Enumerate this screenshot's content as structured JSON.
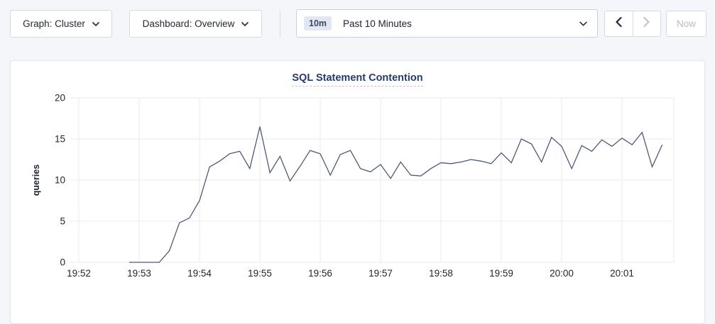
{
  "toolbar": {
    "graph_dropdown": {
      "label": "Graph: Cluster"
    },
    "dashboard_dropdown": {
      "label": "Dashboard: Overview"
    },
    "time_window": {
      "badge": "10m",
      "label": "Past 10 Minutes"
    },
    "prev_button": {
      "enabled": true
    },
    "next_button": {
      "enabled": false
    },
    "now_button": {
      "label": "Now"
    }
  },
  "colors": {
    "accent_navy": "#263a6e",
    "line": "#4c5a77",
    "grid": "#e9ebee",
    "disabled_text": "#b6bcc9"
  },
  "chart_data": {
    "type": "line",
    "title": "SQL Statement Contention",
    "xlabel": "",
    "ylabel": "queries",
    "ylim": [
      0,
      20
    ],
    "y_ticks": [
      0,
      5,
      10,
      15,
      20
    ],
    "x_ticks": [
      "19:52",
      "19:53",
      "19:54",
      "19:55",
      "19:56",
      "19:57",
      "19:58",
      "19:59",
      "20:00",
      "20:01"
    ],
    "grid": true,
    "legend": "none",
    "series": [
      {
        "name": "queries",
        "points": [
          [
            "19:52:50",
            0
          ],
          [
            "19:53:00",
            0
          ],
          [
            "19:53:10",
            0
          ],
          [
            "19:53:20",
            0
          ],
          [
            "19:53:30",
            1.4
          ],
          [
            "19:53:40",
            4.8
          ],
          [
            "19:53:50",
            5.4
          ],
          [
            "19:54:00",
            7.5
          ],
          [
            "19:54:10",
            11.6
          ],
          [
            "19:54:20",
            12.3
          ],
          [
            "19:54:30",
            13.2
          ],
          [
            "19:54:40",
            13.5
          ],
          [
            "19:54:50",
            11.4
          ],
          [
            "19:55:00",
            16.5
          ],
          [
            "19:55:10",
            10.9
          ],
          [
            "19:55:20",
            12.9
          ],
          [
            "19:55:30",
            9.9
          ],
          [
            "19:55:40",
            11.7
          ],
          [
            "19:55:50",
            13.6
          ],
          [
            "19:56:00",
            13.2
          ],
          [
            "19:56:10",
            10.6
          ],
          [
            "19:56:20",
            13.1
          ],
          [
            "19:56:30",
            13.6
          ],
          [
            "19:56:40",
            11.4
          ],
          [
            "19:56:50",
            11.0
          ],
          [
            "19:57:00",
            11.9
          ],
          [
            "19:57:10",
            10.2
          ],
          [
            "19:57:20",
            12.2
          ],
          [
            "19:57:30",
            10.6
          ],
          [
            "19:57:40",
            10.5
          ],
          [
            "19:57:50",
            11.4
          ],
          [
            "19:58:00",
            12.1
          ],
          [
            "19:58:10",
            12.0
          ],
          [
            "19:58:20",
            12.2
          ],
          [
            "19:58:30",
            12.5
          ],
          [
            "19:58:40",
            12.3
          ],
          [
            "19:58:50",
            12.0
          ],
          [
            "19:59:00",
            13.3
          ],
          [
            "19:59:10",
            12.1
          ],
          [
            "19:59:20",
            15.0
          ],
          [
            "19:59:30",
            14.4
          ],
          [
            "19:59:40",
            12.2
          ],
          [
            "19:59:50",
            15.2
          ],
          [
            "20:00:00",
            14.1
          ],
          [
            "20:00:10",
            11.4
          ],
          [
            "20:00:20",
            14.2
          ],
          [
            "20:00:30",
            13.5
          ],
          [
            "20:00:40",
            14.9
          ],
          [
            "20:00:50",
            14.1
          ],
          [
            "20:01:00",
            15.1
          ],
          [
            "20:01:10",
            14.3
          ],
          [
            "20:01:20",
            15.8
          ],
          [
            "20:01:30",
            11.6
          ],
          [
            "20:01:40",
            14.3
          ]
        ]
      }
    ]
  }
}
